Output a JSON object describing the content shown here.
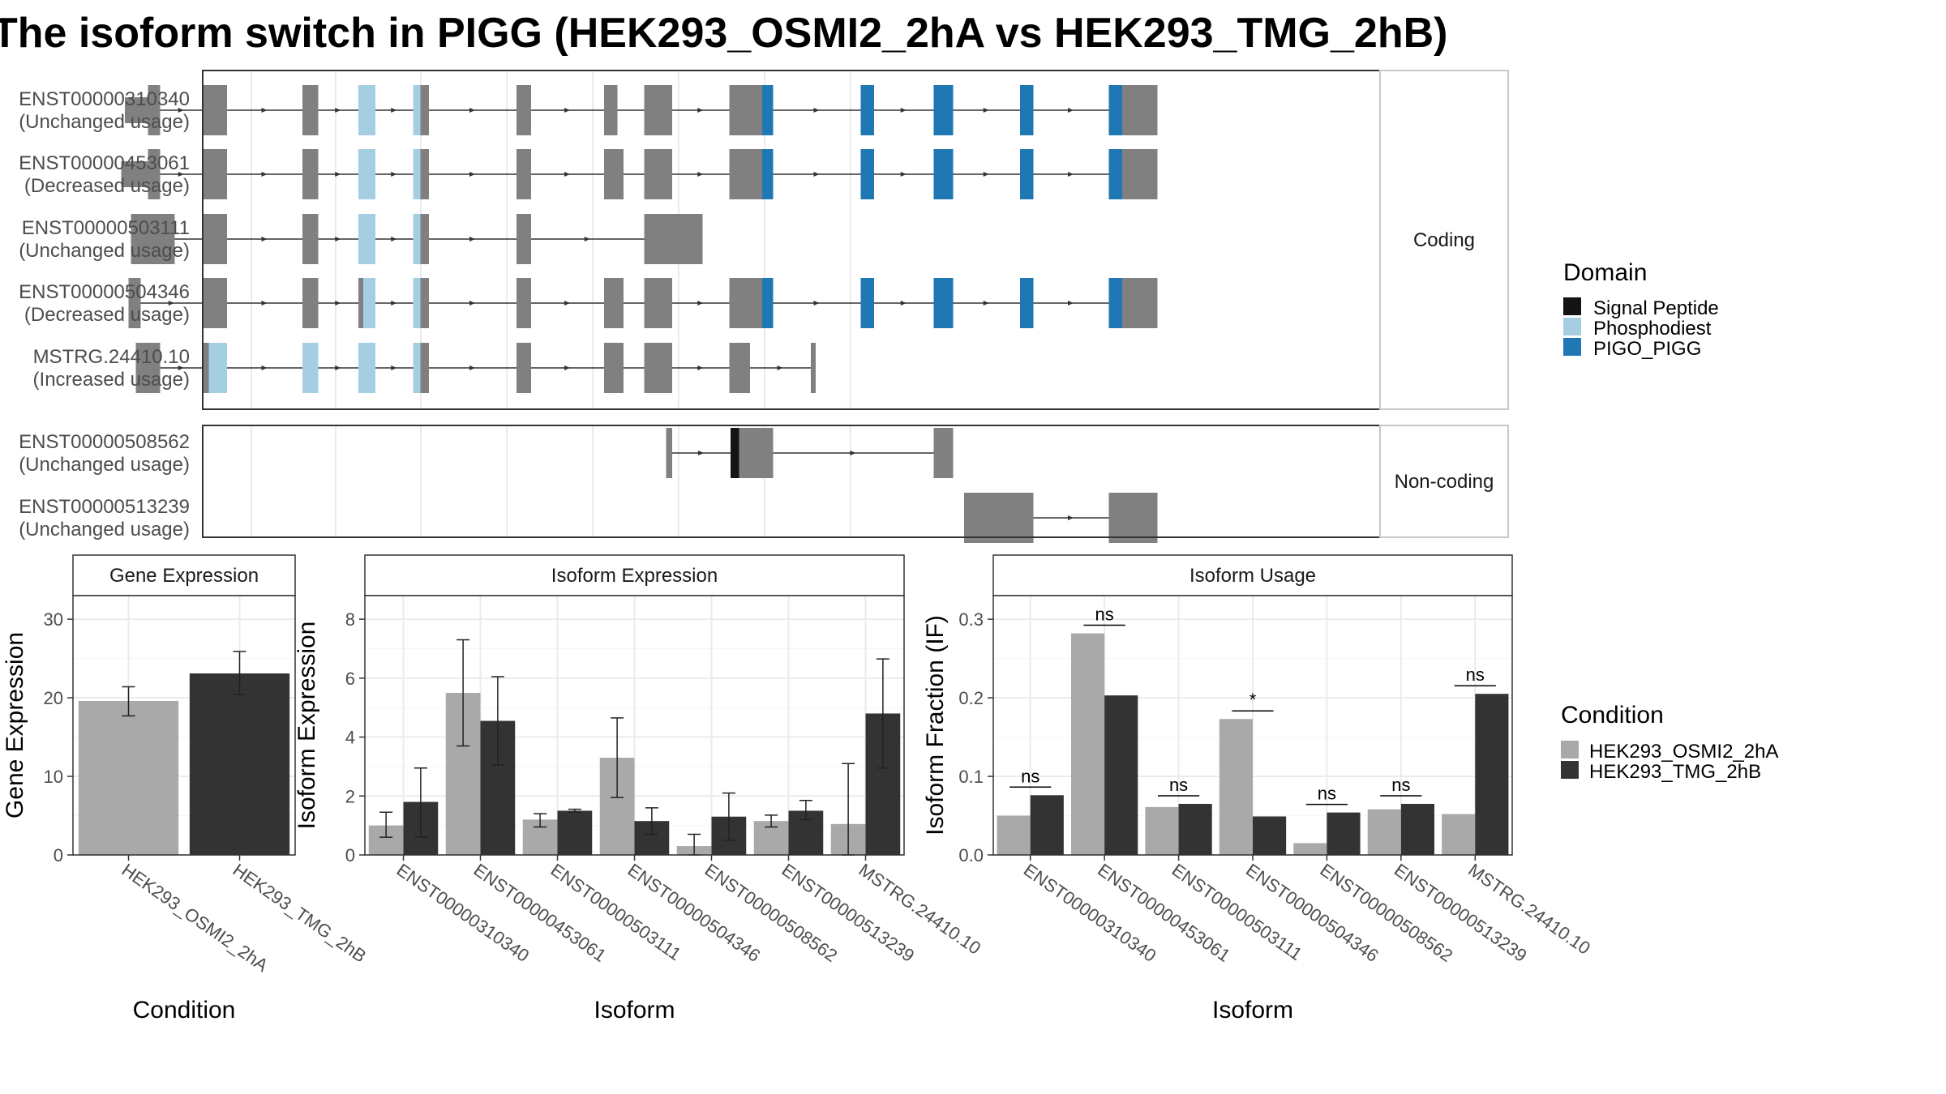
{
  "title": "The isoform switch in PIGG (HEK293_OSMI2_2hA vs HEK293_TMG_2hB)",
  "colors": {
    "exon": "#808080",
    "signal_peptide": "#141414",
    "phosphodiest": "#a6cee3",
    "pigo_pigg": "#1f78b4",
    "cond_a": "#a9a9a9",
    "cond_b": "#333333"
  },
  "chart_data": [
    {
      "type": "gene-structure",
      "facets": [
        "Coding",
        "Non-coding"
      ],
      "domain_legend": {
        "title": "Domain",
        "items": [
          "Signal Peptide",
          "Phosphodiest",
          "PIGO_PIGG"
        ]
      },
      "transcripts": [
        {
          "id": "ENST00000310340",
          "usage": "(Unchanged usage)",
          "facet": "Coding",
          "exons": [
            [
              225,
              235
            ],
            [
              270,
              290
            ],
            [
              352,
              365
            ],
            [
              398,
              412
            ],
            [
              443,
              456
            ],
            [
              528,
              540
            ],
            [
              600,
              611
            ],
            [
              633,
              656
            ],
            [
              703,
              730
            ],
            [
              730,
              739
            ],
            [
              811,
              822
            ],
            [
              871,
              887
            ],
            [
              942,
              953
            ],
            [
              1015,
              1026
            ],
            [
              1026,
              1055
            ]
          ],
          "utr": [
            [
              206,
              225
            ]
          ],
          "domains": [
            [
              "Phosphodiest",
              398,
              412
            ],
            [
              "Phosphodiest",
              443,
              449
            ],
            [
              "PIGO_PIGG",
              730,
              739
            ],
            [
              "PIGO_PIGG",
              811,
              822
            ],
            [
              "PIGO_PIGG",
              871,
              887
            ],
            [
              "PIGO_PIGG",
              942,
              953
            ],
            [
              "PIGO_PIGG",
              1015,
              1026
            ]
          ]
        },
        {
          "id": "ENST00000453061",
          "usage": "(Decreased usage)",
          "facet": "Coding",
          "exons": [
            [
              225,
              235
            ],
            [
              270,
              290
            ],
            [
              352,
              365
            ],
            [
              398,
              412
            ],
            [
              443,
              456
            ],
            [
              528,
              540
            ],
            [
              600,
              616
            ],
            [
              633,
              656
            ],
            [
              703,
              730
            ],
            [
              730,
              739
            ],
            [
              811,
              822
            ],
            [
              871,
              887
            ],
            [
              942,
              953
            ],
            [
              1015,
              1026
            ],
            [
              1026,
              1055
            ]
          ],
          "utr": [
            [
              203,
              225
            ]
          ],
          "domains": [
            [
              "Phosphodiest",
              398,
              412
            ],
            [
              "Phosphodiest",
              443,
              449
            ],
            [
              "PIGO_PIGG",
              730,
              739
            ],
            [
              "PIGO_PIGG",
              811,
              822
            ],
            [
              "PIGO_PIGG",
              871,
              887
            ],
            [
              "PIGO_PIGG",
              942,
              953
            ],
            [
              "PIGO_PIGG",
              1015,
              1026
            ]
          ]
        },
        {
          "id": "ENST00000503111",
          "usage": "(Unchanged usage)",
          "facet": "Coding",
          "exons": [
            [
              211,
              247
            ],
            [
              270,
              290
            ],
            [
              352,
              365
            ],
            [
              398,
              412
            ],
            [
              443,
              456
            ],
            [
              528,
              540
            ],
            [
              633,
              639
            ],
            [
              639,
              681
            ]
          ],
          "utr": [],
          "domains": [
            [
              "Phosphodiest",
              398,
              412
            ],
            [
              "Phosphodiest",
              443,
              449
            ]
          ]
        },
        {
          "id": "ENST00000504346",
          "usage": "(Decreased usage)",
          "facet": "Coding",
          "exons": [
            [
              209,
              219
            ],
            [
              270,
              282
            ],
            [
              282,
              290
            ],
            [
              352,
              365
            ],
            [
              398,
              412
            ],
            [
              443,
              456
            ],
            [
              528,
              540
            ],
            [
              600,
              616
            ],
            [
              633,
              656
            ],
            [
              703,
              730
            ],
            [
              730,
              739
            ],
            [
              811,
              822
            ],
            [
              871,
              887
            ],
            [
              942,
              953
            ],
            [
              1015,
              1026
            ],
            [
              1026,
              1055
            ]
          ],
          "utr": [],
          "domains": [
            [
              "Phosphodiest",
              402,
              412
            ],
            [
              "Phosphodiest",
              443,
              449
            ],
            [
              "PIGO_PIGG",
              730,
              739
            ],
            [
              "PIGO_PIGG",
              811,
              822
            ],
            [
              "PIGO_PIGG",
              871,
              887
            ],
            [
              "PIGO_PIGG",
              942,
              953
            ],
            [
              "PIGO_PIGG",
              1015,
              1026
            ]
          ]
        },
        {
          "id": "MSTRG.24410.10",
          "usage": "(Increased usage)",
          "facet": "Coding",
          "exons": [
            [
              215,
              225
            ],
            [
              225,
              235
            ],
            [
              270,
              290
            ],
            [
              352,
              365
            ],
            [
              398,
              412
            ],
            [
              443,
              456
            ],
            [
              528,
              540
            ],
            [
              600,
              616
            ],
            [
              633,
              656
            ],
            [
              703,
              720
            ],
            [
              770,
              774
            ]
          ],
          "utr": [],
          "domains": [
            [
              "Phosphodiest",
              275,
              290
            ],
            [
              "Phosphodiest",
              352,
              365
            ],
            [
              "Phosphodiest",
              398,
              412
            ],
            [
              "Phosphodiest",
              443,
              449
            ]
          ]
        },
        {
          "id": "ENST00000508562",
          "usage": "(Unchanged usage)",
          "facet": "Non-coding",
          "exons": [
            [
              651,
              656
            ],
            [
              704,
              711
            ],
            [
              711,
              739
            ],
            [
              871,
              887
            ]
          ],
          "utr": [],
          "domains": [
            [
              "Signal Peptide",
              704,
              711
            ]
          ]
        },
        {
          "id": "ENST00000513239",
          "usage": "(Unchanged usage)",
          "facet": "Non-coding",
          "exons": [
            [
              896,
              953
            ],
            [
              1015,
              1055
            ]
          ],
          "utr": [],
          "domains": []
        }
      ]
    },
    {
      "type": "bar",
      "title": "Gene Expression",
      "xlabel": "Condition",
      "ylabel": "Gene Expression",
      "ylim": [
        0,
        33
      ],
      "yticks": [
        0,
        10,
        20,
        30
      ],
      "categories": [
        "HEK293_OSMI2_2hA",
        "HEK293_TMG_2hB"
      ],
      "values": [
        19.6,
        23.1
      ],
      "err_low": [
        17.7,
        20.4
      ],
      "err_high": [
        21.4,
        25.9
      ]
    },
    {
      "type": "bar",
      "title": "Isoform Expression",
      "xlabel": "Isoform",
      "ylabel": "Isoform Expression",
      "ylim": [
        0,
        8.8
      ],
      "yticks": [
        0,
        2,
        4,
        6,
        8
      ],
      "categories": [
        "ENST00000310340",
        "ENST00000453061",
        "ENST00000503111",
        "ENST00000504346",
        "ENST00000508562",
        "ENST00000513239",
        "MSTRG.24410.10"
      ],
      "series": [
        {
          "name": "HEK293_OSMI2_2hA",
          "values": [
            1.0,
            5.5,
            1.2,
            3.3,
            0.3,
            1.15,
            1.05
          ],
          "err_low": [
            0.6,
            3.7,
            0.95,
            1.95,
            0.0,
            0.95,
            0.0
          ],
          "err_high": [
            1.45,
            7.3,
            1.4,
            4.65,
            0.7,
            1.35,
            3.1
          ]
        },
        {
          "name": "HEK293_TMG_2hB",
          "values": [
            1.8,
            4.55,
            1.5,
            1.15,
            1.3,
            1.5,
            4.8
          ],
          "err_low": [
            0.6,
            3.05,
            1.45,
            0.7,
            0.5,
            1.2,
            2.95
          ],
          "err_high": [
            2.95,
            6.05,
            1.55,
            1.6,
            2.1,
            1.85,
            6.65
          ]
        }
      ]
    },
    {
      "type": "bar",
      "title": "Isoform Usage",
      "xlabel": "Isoform",
      "ylabel": "Isoform Fraction (IF)",
      "ylim": [
        0,
        0.33
      ],
      "yticks": [
        "0.0",
        "0.1",
        "0.2",
        "0.3"
      ],
      "categories": [
        "ENST00000310340",
        "ENST00000453061",
        "ENST00000503111",
        "ENST00000504346",
        "ENST00000508562",
        "ENST00000513239",
        "MSTRG.24410.10"
      ],
      "series": [
        {
          "name": "HEK293_OSMI2_2hA",
          "values": [
            0.05,
            0.282,
            0.061,
            0.173,
            0.015,
            0.058,
            0.052
          ]
        },
        {
          "name": "HEK293_TMG_2hB",
          "values": [
            0.076,
            0.203,
            0.065,
            0.049,
            0.054,
            0.065,
            0.205
          ]
        }
      ],
      "significance": [
        "ns",
        "ns",
        "ns",
        "*",
        "ns",
        "ns",
        "ns"
      ]
    }
  ],
  "condition_legend": {
    "title": "Condition",
    "items": [
      "HEK293_OSMI2_2hA",
      "HEK293_TMG_2hB"
    ]
  }
}
